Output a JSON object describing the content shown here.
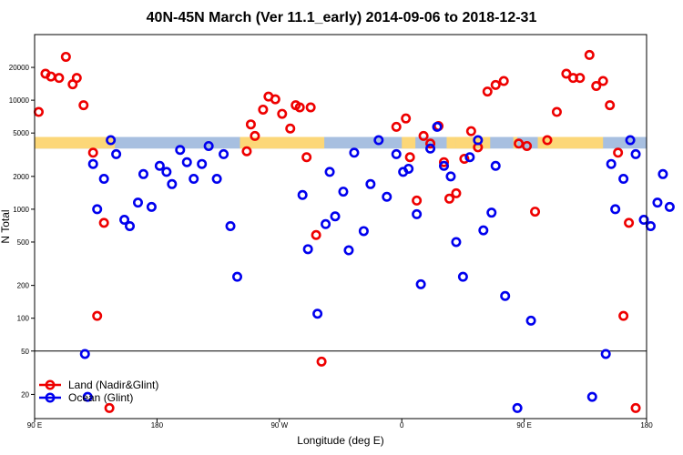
{
  "chart_data": {
    "type": "scatter",
    "title": "40N-45N March (Ver 11.1_early)   2014-09-06 to 2018-12-31",
    "xlabel": "Longitude (deg E)",
    "ylabel": "N Total",
    "x_axis": {
      "range_deg_east": [
        90,
        540
      ],
      "ticks": [
        {
          "pos": 90,
          "label": "90 E"
        },
        {
          "pos": 180,
          "label": "180"
        },
        {
          "pos": 270,
          "label": "90 W"
        },
        {
          "pos": 360,
          "label": "0"
        },
        {
          "pos": 450,
          "label": "90 E"
        },
        {
          "pos": 540,
          "label": "180"
        }
      ]
    },
    "y_axis": {
      "scale": "log",
      "range": [
        12,
        40000
      ],
      "ticks": [
        20,
        50,
        100,
        200,
        500,
        1000,
        2000,
        5000,
        10000,
        20000
      ]
    },
    "reference_line": {
      "y": 50
    },
    "coverage_band": {
      "y_range": [
        3600,
        4600
      ],
      "base_color": "#a7bfe0",
      "highlight_color": "#fcd778",
      "highlight_x_ranges": [
        [
          90,
          144
        ],
        [
          146,
          149
        ],
        [
          144,
          146
        ],
        [
          241,
          303
        ],
        [
          360,
          370
        ],
        [
          393,
          400
        ],
        [
          400,
          425
        ],
        [
          442,
          445
        ],
        [
          462,
          465
        ],
        [
          460,
          508
        ]
      ]
    },
    "series": [
      {
        "name": "Land (Nadir&Glint)",
        "color": "#ee0000",
        "points": [
          [
            93,
            7800
          ],
          [
            98,
            17500
          ],
          [
            102,
            16500
          ],
          [
            108,
            16000
          ],
          [
            113,
            25000
          ],
          [
            118,
            14000
          ],
          [
            121,
            16000
          ],
          [
            126,
            9000
          ],
          [
            133,
            3300
          ],
          [
            136,
            105
          ],
          [
            141,
            750
          ],
          [
            145,
            15
          ],
          [
            246,
            3400
          ],
          [
            249,
            6000
          ],
          [
            252,
            4700
          ],
          [
            258,
            8200
          ],
          [
            262,
            10800
          ],
          [
            267,
            10200
          ],
          [
            272,
            7500
          ],
          [
            278,
            5500
          ],
          [
            282,
            9000
          ],
          [
            285,
            8600
          ],
          [
            290,
            3000
          ],
          [
            293,
            8600
          ],
          [
            297,
            580
          ],
          [
            301,
            40
          ],
          [
            356,
            5700
          ],
          [
            363,
            6800
          ],
          [
            366,
            3000
          ],
          [
            371,
            1200
          ],
          [
            376,
            4700
          ],
          [
            381,
            4000
          ],
          [
            387,
            5800
          ],
          [
            391,
            2700
          ],
          [
            395,
            1250
          ],
          [
            400,
            1400
          ],
          [
            406,
            2900
          ],
          [
            411,
            5200
          ],
          [
            416,
            3700
          ],
          [
            423,
            12000
          ],
          [
            429,
            13800
          ],
          [
            435,
            15000
          ],
          [
            446,
            4000
          ],
          [
            452,
            3800
          ],
          [
            458,
            950
          ],
          [
            467,
            4300
          ],
          [
            474,
            7800
          ],
          [
            481,
            17500
          ],
          [
            486,
            16000
          ],
          [
            491,
            16000
          ],
          [
            498,
            26000
          ],
          [
            503,
            13500
          ],
          [
            508,
            15000
          ],
          [
            513,
            9000
          ],
          [
            519,
            3300
          ],
          [
            523,
            105
          ],
          [
            527,
            750
          ],
          [
            532,
            15
          ]
        ]
      },
      {
        "name": "Ocean (Glint)",
        "color": "#0000ee",
        "points": [
          [
            127,
            47
          ],
          [
            129,
            19
          ],
          [
            133,
            2600
          ],
          [
            136,
            1000
          ],
          [
            141,
            1900
          ],
          [
            146,
            4300
          ],
          [
            150,
            3200
          ],
          [
            156,
            800
          ],
          [
            160,
            700
          ],
          [
            166,
            1150
          ],
          [
            170,
            2100
          ],
          [
            176,
            1050
          ],
          [
            182,
            2500
          ],
          [
            187,
            2200
          ],
          [
            191,
            1700
          ],
          [
            197,
            3500
          ],
          [
            202,
            2700
          ],
          [
            207,
            1900
          ],
          [
            213,
            2600
          ],
          [
            218,
            3800
          ],
          [
            224,
            1900
          ],
          [
            229,
            3200
          ],
          [
            234,
            700
          ],
          [
            239,
            240
          ],
          [
            287,
            1350
          ],
          [
            291,
            430
          ],
          [
            298,
            110
          ],
          [
            304,
            730
          ],
          [
            307,
            2200
          ],
          [
            311,
            860
          ],
          [
            317,
            1450
          ],
          [
            321,
            420
          ],
          [
            325,
            3300
          ],
          [
            332,
            630
          ],
          [
            337,
            1700
          ],
          [
            343,
            4300
          ],
          [
            349,
            1300
          ],
          [
            356,
            3200
          ],
          [
            361,
            2200
          ],
          [
            365,
            2350
          ],
          [
            371,
            900
          ],
          [
            374,
            205
          ],
          [
            381,
            3600
          ],
          [
            386,
            5700
          ],
          [
            391,
            2500
          ],
          [
            396,
            2000
          ],
          [
            400,
            500
          ],
          [
            405,
            240
          ],
          [
            410,
            3000
          ],
          [
            416,
            4300
          ],
          [
            420,
            640
          ],
          [
            426,
            930
          ],
          [
            429,
            2500
          ],
          [
            436,
            160
          ],
          [
            445,
            15
          ],
          [
            455,
            95
          ],
          [
            500,
            19
          ],
          [
            510,
            47
          ],
          [
            514,
            2600
          ],
          [
            517,
            1000
          ],
          [
            523,
            1900
          ],
          [
            528,
            4300
          ],
          [
            532,
            3200
          ],
          [
            538,
            800
          ],
          [
            543,
            700
          ],
          [
            548,
            1150
          ],
          [
            552,
            2100
          ],
          [
            557,
            1050
          ]
        ]
      }
    ],
    "legend": {
      "placement": "bottom-left"
    }
  }
}
